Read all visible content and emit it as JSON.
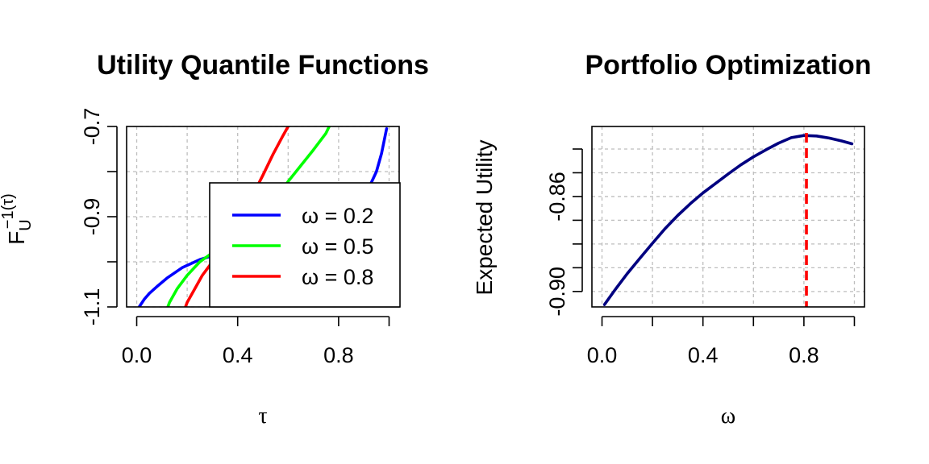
{
  "chart_data": [
    {
      "type": "line",
      "title": "Utility Quantile Functions",
      "xlabel": "τ",
      "ylabel": "F_U^{-1}(τ)",
      "xlim": [
        -0.04,
        1.04
      ],
      "ylim": [
        -1.1,
        -0.7
      ],
      "x_ticks": [
        "0.0",
        "0.4",
        "0.8"
      ],
      "y_ticks": [
        "-1.1",
        "-0.9",
        "-0.7"
      ],
      "grid": true,
      "legend_position": "bottom-right",
      "series": [
        {
          "name": "ω = 0.2",
          "color": "#0000ff",
          "x": [
            0.01,
            0.03,
            0.05,
            0.08,
            0.12,
            0.18,
            0.25,
            0.35,
            0.45,
            0.55,
            0.65,
            0.72,
            0.78,
            0.84,
            0.88,
            0.92,
            0.95,
            0.97,
            0.99
          ],
          "y": [
            -1.1,
            -1.083,
            -1.07,
            -1.055,
            -1.036,
            -1.013,
            -0.995,
            -0.978,
            -0.966,
            -0.953,
            -0.938,
            -0.925,
            -0.909,
            -0.89,
            -0.867,
            -0.836,
            -0.8,
            -0.76,
            -0.705
          ]
        },
        {
          "name": "ω = 0.5",
          "color": "#00ff00",
          "x": [
            0.11,
            0.13,
            0.16,
            0.2,
            0.25,
            0.3,
            0.35,
            0.4,
            0.45,
            0.5,
            0.55,
            0.6,
            0.65,
            0.7,
            0.75,
            0.78
          ],
          "y": [
            -1.12,
            -1.09,
            -1.06,
            -1.03,
            -1.0,
            -0.98,
            -0.96,
            -0.94,
            -0.92,
            -0.896,
            -0.86,
            -0.822,
            -0.787,
            -0.752,
            -0.715,
            -0.68
          ]
        },
        {
          "name": "ω = 0.8",
          "color": "#ff0000",
          "x": [
            0.18,
            0.2,
            0.23,
            0.26,
            0.3,
            0.34,
            0.38,
            0.42,
            0.46,
            0.5,
            0.54,
            0.58,
            0.62
          ],
          "y": [
            -1.12,
            -1.09,
            -1.06,
            -1.03,
            -1.0,
            -0.975,
            -0.945,
            -0.9,
            -0.852,
            -0.808,
            -0.762,
            -0.72,
            -0.68
          ]
        }
      ]
    },
    {
      "type": "line",
      "title": "Portfolio Optimization",
      "xlabel": "ω",
      "ylabel": "Expected Utility",
      "xlim": [
        -0.04,
        1.04
      ],
      "ylim": [
        -0.9065,
        -0.8305
      ],
      "x_ticks": [
        "0.0",
        "0.4",
        "0.8"
      ],
      "y_ticks": [
        "-0.90",
        "-0.86"
      ],
      "grid": true,
      "optimum_x": 0.81,
      "series": [
        {
          "name": "",
          "color": "#000080",
          "x": [
            0.01,
            0.05,
            0.1,
            0.15,
            0.2,
            0.25,
            0.3,
            0.35,
            0.4,
            0.45,
            0.5,
            0.55,
            0.6,
            0.65,
            0.7,
            0.75,
            0.8,
            0.85,
            0.9,
            0.95,
            0.99
          ],
          "y": [
            -0.9055,
            -0.8995,
            -0.8925,
            -0.886,
            -0.8797,
            -0.8735,
            -0.868,
            -0.863,
            -0.8585,
            -0.8545,
            -0.8505,
            -0.8467,
            -0.8433,
            -0.8403,
            -0.8375,
            -0.8352,
            -0.8343,
            -0.8345,
            -0.8354,
            -0.8366,
            -0.8378
          ]
        }
      ]
    }
  ]
}
